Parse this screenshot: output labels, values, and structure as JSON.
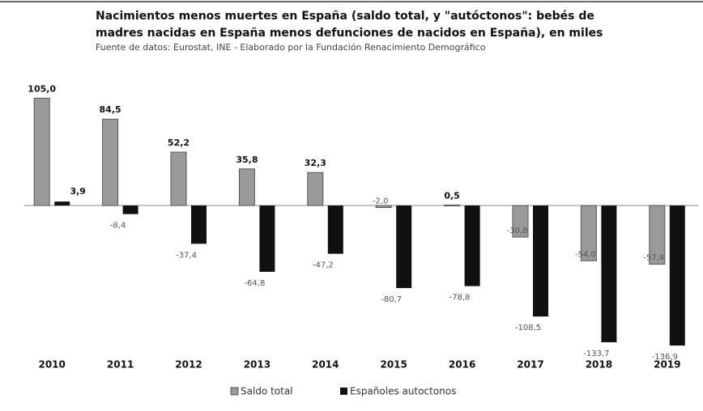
{
  "chart_data": {
    "type": "bar",
    "title": [
      "Nacimientos menos muertes en España (saldo total, y \"autóctonos\": bebés de",
      "madres nacidas en España menos defunciones de nacidos en España), en miles"
    ],
    "subtitle": "Fuente de datos: Eurostat, INE - Elaborado por la Fundación Renacimiento Demográfico",
    "categories": [
      "2010",
      "2011",
      "2012",
      "2013",
      "2014",
      "2015",
      "2016",
      "2017",
      "2018",
      "2019"
    ],
    "series": [
      {
        "name": "Saldo total",
        "color": "#9a9a9a",
        "values": [
          105.0,
          84.5,
          52.2,
          35.8,
          32.3,
          -2.0,
          0.5,
          -30.8,
          -54.0,
          -57.4
        ],
        "value_labels": [
          "105,0",
          "84,5",
          "52,2",
          "35,8",
          "32,3",
          "-2,0",
          "0,5",
          "-30,8",
          "-54,0",
          "-57,4"
        ]
      },
      {
        "name": "Españoles autoctonos",
        "color": "#111111",
        "values": [
          3.9,
          -8.4,
          -37.4,
          -64.8,
          -47.2,
          -80.7,
          -78.8,
          -108.5,
          -133.7,
          -136.9
        ],
        "value_labels": [
          "3,9",
          "-8,4",
          "-37,4",
          "-64,8",
          "-47,2",
          "-80,7",
          "-78,8",
          "-108,5",
          "-133,7",
          "-136,9"
        ]
      }
    ],
    "ylim": [
      -140,
      110
    ]
  }
}
